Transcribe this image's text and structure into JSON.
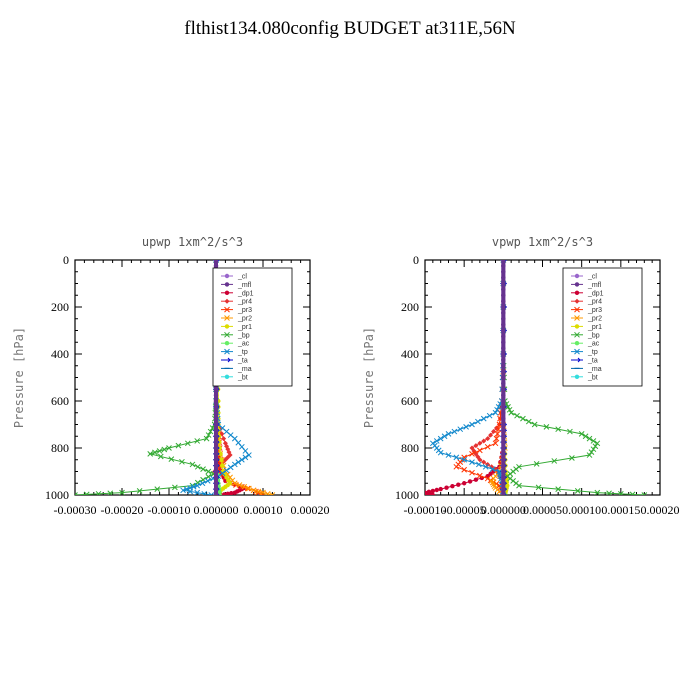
{
  "title": "flthist134.080config  BUDGET at311E,56N",
  "chart_data": [
    {
      "type": "line",
      "title": "upwp   1xm^2/s^3",
      "ylabel": "Pressure [hPa]",
      "xlim": [
        -0.0003,
        0.0002
      ],
      "ylim": [
        1000,
        0
      ],
      "xticks": [
        "-0.00030",
        "-0.00020",
        "-0.00010",
        "0.000000",
        "0.00010",
        "0.00020"
      ],
      "yticks": [
        "0",
        "200",
        "400",
        "600",
        "800",
        "1000"
      ],
      "legend": "top-right",
      "series": [
        {
          "name": "_cl",
          "color": "#9966cc",
          "marker": "circle",
          "y": [
            0,
            100,
            200,
            300,
            400,
            500,
            600,
            700,
            800,
            900,
            1000
          ],
          "x": [
            0,
            0,
            0,
            0,
            0,
            0,
            0,
            0,
            0,
            0,
            0
          ]
        },
        {
          "name": "_mfl",
          "color": "#66338f",
          "marker": "circle",
          "y": [
            0,
            100,
            200,
            300,
            400,
            500,
            600,
            700,
            800,
            900,
            1000
          ],
          "x": [
            0,
            0,
            0,
            0,
            0,
            0,
            0,
            0,
            0,
            0,
            0
          ]
        },
        {
          "name": "_dp1",
          "color": "#cc0033",
          "marker": "circle",
          "y": [
            0,
            200,
            400,
            600,
            700,
            800,
            880,
            940,
            970,
            990,
            1000
          ],
          "x": [
            0,
            0,
            0,
            0,
            3e-06,
            5e-06,
            5e-06,
            2e-05,
            6e-05,
            4e-05,
            1e-05
          ]
        },
        {
          "name": "_pr4",
          "color": "#e63333",
          "marker": "diamond",
          "y": [
            0,
            200,
            400,
            600,
            700,
            780,
            830,
            870,
            900,
            950,
            1000
          ],
          "x": [
            0,
            0,
            0,
            2e-06,
            5e-06,
            2e-05,
            3e-05,
            1e-05,
            -3e-06,
            5e-06,
            2e-06
          ]
        },
        {
          "name": "_pr3",
          "color": "#ff3300",
          "marker": "cross",
          "y": [
            0,
            200,
            400,
            600,
            700,
            800,
            900,
            950,
            980,
            1000
          ],
          "x": [
            0,
            0,
            0,
            0,
            3e-06,
            8e-06,
            1e-05,
            3e-05,
            8e-05,
            0.0001
          ]
        },
        {
          "name": "_pr2",
          "color": "#ff9900",
          "marker": "cross",
          "y": [
            0,
            200,
            400,
            600,
            700,
            800,
            900,
            950,
            980,
            1000
          ],
          "x": [
            0,
            0,
            0,
            0,
            2e-06,
            5e-06,
            2e-05,
            4e-05,
            8e-05,
            0.00012
          ]
        },
        {
          "name": "_pr1",
          "color": "#dddd00",
          "marker": "circle",
          "y": [
            0,
            250,
            400,
            600,
            700,
            800,
            900,
            950,
            980,
            1000
          ],
          "x": [
            0,
            2e-06,
            3e-06,
            5e-06,
            5e-06,
            8e-06,
            1.5e-05,
            3e-05,
            1e-05,
            5e-06
          ]
        },
        {
          "name": "_bp",
          "color": "#33aa33",
          "marker": "cross",
          "y": [
            0,
            200,
            400,
            600,
            700,
            760,
            800,
            825,
            870,
            910,
            960,
            990,
            1000
          ],
          "x": [
            0,
            0,
            0,
            0,
            -3e-06,
            -2e-05,
            -0.0001,
            -0.00014,
            -5e-05,
            -5e-06,
            -5e-05,
            -0.0002,
            -0.0003
          ]
        },
        {
          "name": "_ac",
          "color": "#66ee66",
          "marker": "circle",
          "y": [
            0,
            400,
            700,
            800,
            900,
            950,
            1000
          ],
          "x": [
            0,
            0,
            0,
            0,
            2e-06,
            5e-06,
            8e-06
          ]
        },
        {
          "name": "_tp",
          "color": "#1188cc",
          "marker": "cross",
          "y": [
            0,
            200,
            400,
            600,
            700,
            760,
            830,
            870,
            920,
            960,
            980,
            1000
          ],
          "x": [
            0,
            0,
            0,
            0,
            5e-06,
            4e-05,
            7e-05,
            4e-05,
            5e-06,
            -4e-05,
            -7e-05,
            -1e-05
          ]
        },
        {
          "name": "_ta",
          "color": "#0000cc",
          "marker": "arrow",
          "y": [
            0,
            400,
            700,
            800,
            900,
            1000
          ],
          "x": [
            0,
            0,
            0,
            0,
            0,
            0
          ]
        },
        {
          "name": "_ma",
          "color": "#0066aa",
          "marker": "dash",
          "y": [
            0,
            400,
            700,
            800,
            900,
            1000
          ],
          "x": [
            0,
            0,
            0,
            0,
            0,
            0
          ]
        },
        {
          "name": "_bt",
          "color": "#33dddd",
          "marker": "circle",
          "y": [
            0,
            400,
            700,
            800,
            900,
            1000
          ],
          "x": [
            0,
            0,
            0,
            0,
            0,
            0
          ]
        }
      ]
    },
    {
      "type": "line",
      "title": "vpwp   1xm^2/s^3",
      "ylabel": "Pressure [hPa]",
      "xlim": [
        -0.0001,
        0.0002
      ],
      "ylim": [
        1000,
        0
      ],
      "xticks": [
        "-0.00010",
        "-0.00005",
        "0.000000",
        "0.00005",
        "0.00010",
        "0.00015",
        "0.00020"
      ],
      "yticks": [
        "0",
        "200",
        "400",
        "600",
        "800",
        "1000"
      ],
      "legend": "top-right",
      "series": [
        {
          "name": "_cl",
          "color": "#9966cc",
          "marker": "circle",
          "y": [
            0,
            100,
            200,
            300,
            400,
            500,
            600,
            700,
            800,
            900,
            1000
          ],
          "x": [
            0,
            0,
            0,
            0,
            0,
            0,
            0,
            0,
            0,
            0,
            0
          ]
        },
        {
          "name": "_mfl",
          "color": "#66338f",
          "marker": "circle",
          "y": [
            0,
            100,
            200,
            300,
            400,
            500,
            600,
            700,
            800,
            900,
            1000
          ],
          "x": [
            0,
            0,
            0,
            0,
            0,
            0,
            0,
            0,
            0,
            0,
            0
          ]
        },
        {
          "name": "_dp1",
          "color": "#cc0033",
          "marker": "circle",
          "y": [
            0,
            400,
            700,
            800,
            880,
            920,
            950,
            975,
            990,
            1000
          ],
          "x": [
            0,
            0,
            0,
            0,
            -5e-06,
            -2e-05,
            -5e-05,
            -8e-05,
            -0.0001,
            -9e-05
          ]
        },
        {
          "name": "_pr4",
          "color": "#e63333",
          "marker": "diamond",
          "y": [
            0,
            400,
            600,
            700,
            760,
            800,
            850,
            890,
            930,
            1000
          ],
          "x": [
            0,
            0,
            0,
            -5e-06,
            -2e-05,
            -4e-05,
            -3e-05,
            -1e-05,
            -3e-06,
            0
          ]
        },
        {
          "name": "_pr3",
          "color": "#ff3300",
          "marker": "cross",
          "y": [
            0,
            400,
            600,
            700,
            780,
            840,
            880,
            930,
            960,
            1000
          ],
          "x": [
            0,
            0,
            -2e-06,
            -5e-06,
            -1e-05,
            -5e-05,
            -6e-05,
            -2e-05,
            -5e-06,
            0
          ]
        },
        {
          "name": "_pr2",
          "color": "#ff9900",
          "marker": "cross",
          "y": [
            0,
            400,
            700,
            800,
            900,
            940,
            970,
            1000
          ],
          "x": [
            0,
            0,
            0,
            2e-06,
            -5e-06,
            -1.5e-05,
            -1e-05,
            0
          ]
        },
        {
          "name": "_pr1",
          "color": "#dddd00",
          "marker": "circle",
          "y": [
            0,
            400,
            700,
            800,
            900,
            960,
            1000
          ],
          "x": [
            0,
            0,
            0,
            2e-06,
            3e-06,
            5e-06,
            2e-06
          ]
        },
        {
          "name": "_bp",
          "color": "#33aa33",
          "marker": "cross",
          "y": [
            0,
            400,
            600,
            650,
            700,
            740,
            780,
            830,
            880,
            920,
            960,
            990,
            1000
          ],
          "x": [
            0,
            0,
            2e-06,
            1e-05,
            4e-05,
            0.0001,
            0.00012,
            0.00011,
            2e-05,
            5e-06,
            2e-05,
            0.00012,
            0.00018
          ]
        },
        {
          "name": "_ac",
          "color": "#66ee66",
          "marker": "circle",
          "y": [
            0,
            400,
            700,
            800,
            900,
            1000
          ],
          "x": [
            0,
            0,
            0,
            0,
            0,
            2e-06
          ]
        },
        {
          "name": "_tp",
          "color": "#1188cc",
          "marker": "cross",
          "y": [
            0,
            400,
            600,
            650,
            700,
            740,
            780,
            820,
            860,
            900,
            940,
            1000
          ],
          "x": [
            0,
            0,
            -2e-06,
            -1e-05,
            -4e-05,
            -7e-05,
            -9e-05,
            -8e-05,
            -4e-05,
            -5e-06,
            -2e-06,
            0
          ]
        },
        {
          "name": "_ta",
          "color": "#0000cc",
          "marker": "arrow",
          "y": [
            0,
            400,
            700,
            800,
            900,
            1000
          ],
          "x": [
            0,
            0,
            0,
            0,
            0,
            0
          ]
        },
        {
          "name": "_ma",
          "color": "#0066aa",
          "marker": "dash",
          "y": [
            0,
            400,
            700,
            800,
            900,
            1000
          ],
          "x": [
            0,
            0,
            0,
            0,
            0,
            0
          ]
        },
        {
          "name": "_bt",
          "color": "#33dddd",
          "marker": "circle",
          "y": [
            0,
            400,
            700,
            800,
            900,
            1000
          ],
          "x": [
            0,
            0,
            0,
            0,
            0,
            0
          ]
        }
      ]
    }
  ]
}
